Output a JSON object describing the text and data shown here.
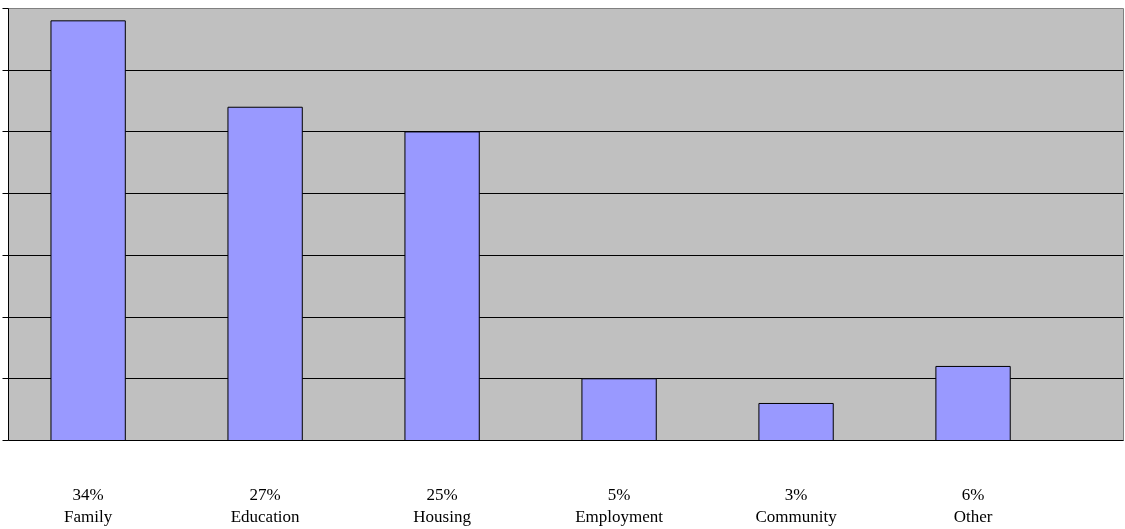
{
  "chart_data": {
    "type": "bar",
    "categories": [
      "Family",
      "Education",
      "Housing",
      "Employment",
      "Community",
      "Other"
    ],
    "values": [
      34,
      27,
      25,
      5,
      3,
      6
    ],
    "value_labels": [
      "34%",
      "27%",
      "25%",
      "5%",
      "3%",
      "6%"
    ],
    "color": "#9999ff",
    "ylim": [
      0,
      35
    ],
    "yticks": [
      {
        "value": 0,
        "label": null
      },
      {
        "value": 5,
        "label": null
      },
      {
        "value": 10,
        "label": null
      },
      {
        "value": 15,
        "label": null
      },
      {
        "value": 20,
        "label": null
      },
      {
        "value": 25,
        "label": null
      },
      {
        "value": 30,
        "label": null
      },
      {
        "value": 35,
        "label": null
      }
    ],
    "grid": "y"
  }
}
